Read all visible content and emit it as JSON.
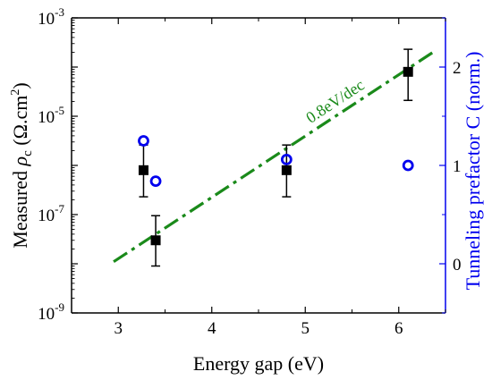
{
  "chart_data": {
    "type": "scatter",
    "title": "",
    "xlabel": "Energy gap (eV)",
    "ylabel": {
      "prefix": "Measured ",
      "symbol": "ρ",
      "subscript": "c",
      "units": " (Ω.cm",
      "units_sup": "2",
      "close": ")"
    },
    "y2label": "Tunneling prefactor C (norm.)",
    "xlim": [
      2.5,
      6.5
    ],
    "ylim": [
      1e-09,
      0.001
    ],
    "ylog": true,
    "y2lim": [
      -0.5,
      2.5
    ],
    "x_ticks": [
      "3",
      "4",
      "5",
      "6"
    ],
    "y_ticks": [
      {
        "base": "10",
        "exp": "-9",
        "value": 1e-09
      },
      {
        "base": "10",
        "exp": "-7",
        "value": 1e-07
      },
      {
        "base": "10",
        "exp": "-5",
        "value": 1e-05
      },
      {
        "base": "10",
        "exp": "-3",
        "value": 0.001
      }
    ],
    "y2_ticks": [
      "0",
      "1",
      "2"
    ],
    "grid": false,
    "series": [
      {
        "kind": "measured",
        "axis": "left",
        "marker": "filled-square",
        "color": "#000000",
        "points": [
          {
            "x": 3.27,
            "y": 8e-07,
            "ylo": 2.3e-07,
            "yhi": 2.6e-06
          },
          {
            "x": 3.4,
            "y": 3e-08,
            "ylo": 9e-09,
            "yhi": 9.5e-08
          },
          {
            "x": 4.8,
            "y": 8e-07,
            "ylo": 2.3e-07,
            "yhi": 2.6e-06
          },
          {
            "x": 6.1,
            "y": 8e-05,
            "ylo": 2.1e-05,
            "yhi": 0.00023
          }
        ]
      },
      {
        "kind": "prefactor",
        "axis": "right",
        "marker": "open-circle",
        "color": "#0000ee",
        "points": [
          {
            "x": 3.27,
            "y": 1.25
          },
          {
            "x": 3.4,
            "y": 0.84
          },
          {
            "x": 4.8,
            "y": 1.06
          },
          {
            "x": 6.1,
            "y": 1.0
          }
        ]
      },
      {
        "kind": "fit",
        "axis": "left",
        "style": "dash-dot",
        "color": "#1a8a1a",
        "label": "0.8eV/dec",
        "x": [
          2.95,
          6.4
        ],
        "y": [
          1.1e-08,
          0.00022
        ]
      }
    ],
    "colors": {
      "axes": "#000000",
      "right_axis": "#0000ee",
      "fit": "#1a8a1a"
    }
  }
}
